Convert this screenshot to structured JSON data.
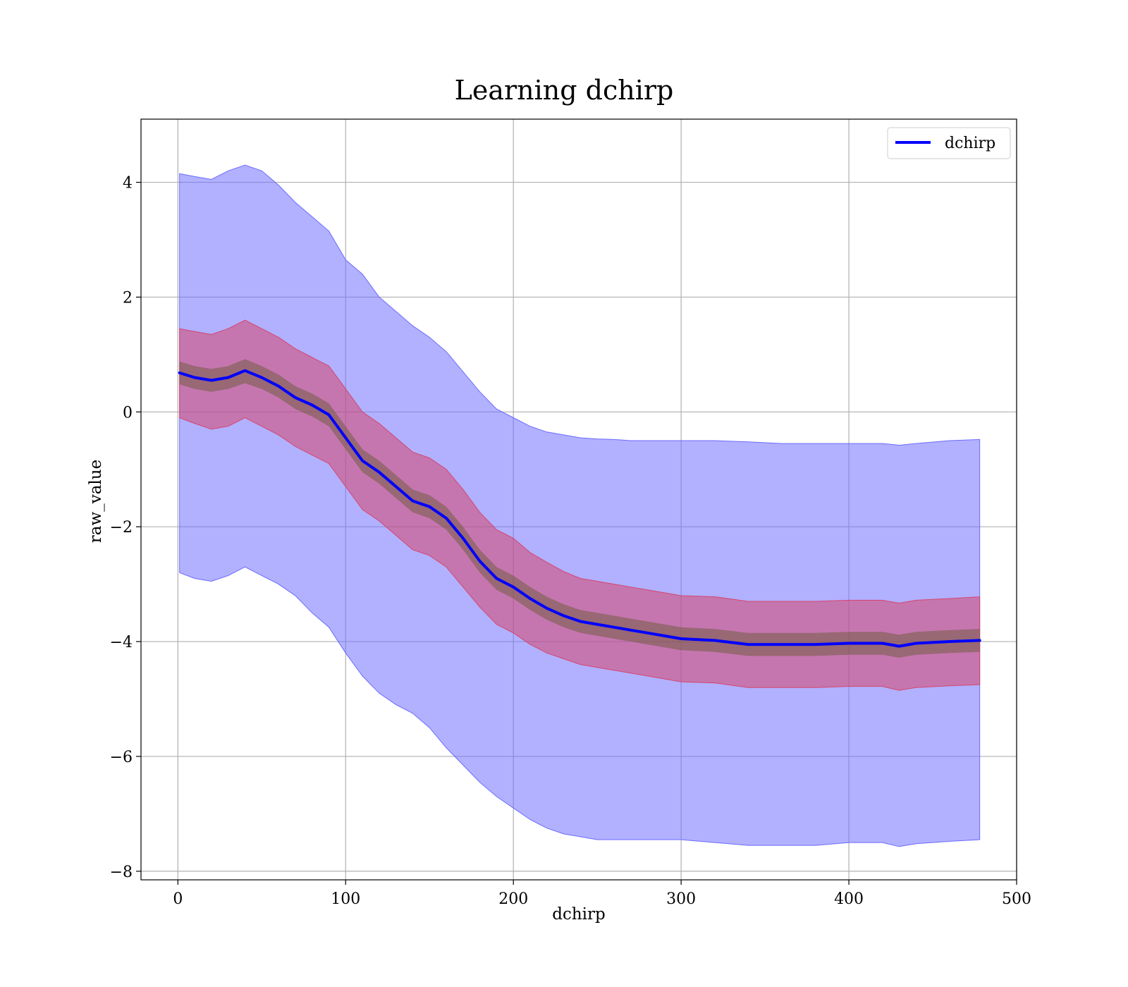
{
  "chart_data": {
    "type": "line",
    "title": "Learning dchirp",
    "xlabel": "dchirp",
    "ylabel": "raw_value",
    "xlim": [
      -22,
      500
    ],
    "ylim": [
      -8.15,
      5.1
    ],
    "xticks": [
      0,
      100,
      200,
      300,
      400,
      500
    ],
    "yticks": [
      -8,
      -6,
      -4,
      -2,
      0,
      2,
      4
    ],
    "xtick_labels": [
      "0",
      "100",
      "200",
      "300",
      "400",
      "500"
    ],
    "ytick_labels": [
      "−8",
      "−6",
      "−4",
      "−2",
      "0",
      "2",
      "4"
    ],
    "grid": true,
    "legend": {
      "position": "top-right",
      "entries": [
        "dchirp"
      ]
    },
    "colors": {
      "line": "#0000ff",
      "band_outer": "#6b6bff",
      "band_middle": "#d6456e",
      "band_inner": "#6b5a3a"
    },
    "x": [
      1,
      10,
      20,
      30,
      40,
      50,
      60,
      70,
      80,
      90,
      100,
      110,
      120,
      130,
      140,
      150,
      160,
      170,
      180,
      190,
      200,
      210,
      220,
      230,
      240,
      250,
      260,
      270,
      280,
      290,
      300,
      320,
      340,
      360,
      380,
      400,
      420,
      430,
      440,
      460,
      478
    ],
    "series": [
      {
        "name": "dchirp",
        "values": [
          0.68,
          0.6,
          0.55,
          0.6,
          0.72,
          0.6,
          0.45,
          0.25,
          0.12,
          -0.05,
          -0.45,
          -0.85,
          -1.05,
          -1.3,
          -1.55,
          -1.65,
          -1.85,
          -2.2,
          -2.6,
          -2.9,
          -3.05,
          -3.25,
          -3.42,
          -3.55,
          -3.65,
          -3.7,
          -3.75,
          -3.8,
          -3.85,
          -3.9,
          -3.95,
          -3.98,
          -4.05,
          -4.05,
          -4.05,
          -4.03,
          -4.03,
          -4.08,
          -4.03,
          -4.0,
          -3.98
        ],
        "band_inner_lower": [
          0.48,
          0.4,
          0.35,
          0.4,
          0.5,
          0.4,
          0.25,
          0.05,
          -0.08,
          -0.25,
          -0.65,
          -1.05,
          -1.25,
          -1.5,
          -1.75,
          -1.85,
          -2.05,
          -2.4,
          -2.8,
          -3.1,
          -3.25,
          -3.45,
          -3.62,
          -3.75,
          -3.85,
          -3.9,
          -3.95,
          -4.0,
          -4.05,
          -4.1,
          -4.15,
          -4.18,
          -4.25,
          -4.25,
          -4.25,
          -4.23,
          -4.23,
          -4.28,
          -4.23,
          -4.2,
          -4.18
        ],
        "band_inner_upper": [
          0.88,
          0.8,
          0.75,
          0.8,
          0.92,
          0.8,
          0.65,
          0.45,
          0.32,
          0.15,
          -0.25,
          -0.65,
          -0.85,
          -1.1,
          -1.35,
          -1.45,
          -1.65,
          -2.0,
          -2.4,
          -2.7,
          -2.85,
          -3.05,
          -3.22,
          -3.35,
          -3.45,
          -3.5,
          -3.55,
          -3.6,
          -3.65,
          -3.7,
          -3.75,
          -3.78,
          -3.85,
          -3.85,
          -3.85,
          -3.83,
          -3.83,
          -3.88,
          -3.83,
          -3.8,
          -3.78
        ],
        "band_middle_lower": [
          -0.1,
          -0.2,
          -0.3,
          -0.25,
          -0.1,
          -0.25,
          -0.4,
          -0.6,
          -0.75,
          -0.9,
          -1.3,
          -1.7,
          -1.9,
          -2.15,
          -2.4,
          -2.5,
          -2.7,
          -3.05,
          -3.4,
          -3.7,
          -3.85,
          -4.05,
          -4.2,
          -4.3,
          -4.4,
          -4.45,
          -4.5,
          -4.55,
          -4.6,
          -4.65,
          -4.7,
          -4.72,
          -4.8,
          -4.8,
          -4.8,
          -4.78,
          -4.78,
          -4.85,
          -4.8,
          -4.77,
          -4.75
        ],
        "band_middle_upper": [
          1.45,
          1.4,
          1.35,
          1.45,
          1.6,
          1.45,
          1.3,
          1.1,
          0.95,
          0.8,
          0.4,
          0.0,
          -0.2,
          -0.45,
          -0.7,
          -0.8,
          -1.0,
          -1.35,
          -1.75,
          -2.05,
          -2.2,
          -2.45,
          -2.62,
          -2.78,
          -2.9,
          -2.95,
          -3.0,
          -3.05,
          -3.1,
          -3.15,
          -3.2,
          -3.22,
          -3.3,
          -3.3,
          -3.3,
          -3.28,
          -3.28,
          -3.33,
          -3.28,
          -3.25,
          -3.22
        ],
        "band_outer_lower": [
          -2.8,
          -2.9,
          -2.95,
          -2.85,
          -2.7,
          -2.85,
          -3.0,
          -3.2,
          -3.5,
          -3.75,
          -4.2,
          -4.6,
          -4.9,
          -5.1,
          -5.25,
          -5.5,
          -5.85,
          -6.15,
          -6.45,
          -6.7,
          -6.9,
          -7.1,
          -7.25,
          -7.35,
          -7.4,
          -7.45,
          -7.45,
          -7.45,
          -7.45,
          -7.45,
          -7.45,
          -7.5,
          -7.55,
          -7.55,
          -7.55,
          -7.5,
          -7.5,
          -7.57,
          -7.52,
          -7.48,
          -7.45
        ],
        "band_outer_upper": [
          4.15,
          4.1,
          4.05,
          4.2,
          4.3,
          4.2,
          3.95,
          3.65,
          3.4,
          3.15,
          2.65,
          2.4,
          2.0,
          1.75,
          1.5,
          1.3,
          1.05,
          0.7,
          0.35,
          0.05,
          -0.1,
          -0.25,
          -0.35,
          -0.4,
          -0.45,
          -0.47,
          -0.48,
          -0.5,
          -0.5,
          -0.5,
          -0.5,
          -0.5,
          -0.52,
          -0.55,
          -0.55,
          -0.55,
          -0.55,
          -0.58,
          -0.55,
          -0.5,
          -0.48
        ]
      }
    ]
  }
}
